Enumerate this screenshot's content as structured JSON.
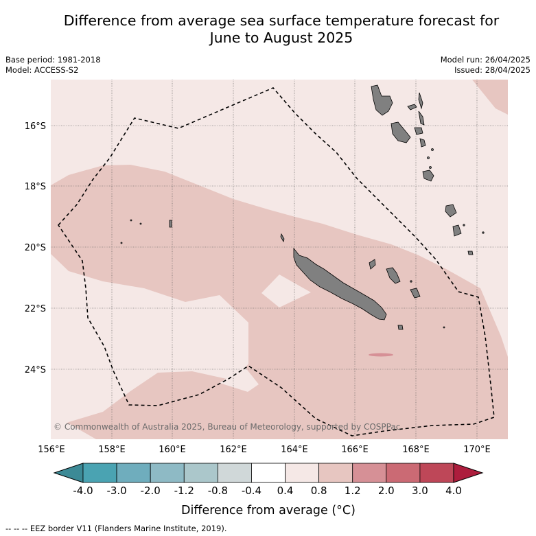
{
  "title_line1": "Difference from average sea surface temperature forecast for",
  "title_line2": "June to August 2025",
  "base_period": "Base period: 1981-2018",
  "model": "Model: ACCESS-S2",
  "model_run": "Model run: 26/04/2025",
  "issued": "Issued: 28/04/2025",
  "copyright": "© Commonwealth of Australia 2025, Bureau of Meteorology, supported by COSPPac",
  "lat_labels": [
    "16°S",
    "18°S",
    "20°S",
    "22°S",
    "24°S"
  ],
  "lon_labels": [
    "156°E",
    "158°E",
    "160°E",
    "162°E",
    "164°E",
    "166°E",
    "168°E",
    "170°E"
  ],
  "colorbar": {
    "labels": [
      "-4.0",
      "-3.0",
      "-2.0",
      "-1.2",
      "-0.8",
      "-0.4",
      "0.4",
      "0.8",
      "1.2",
      "2.0",
      "3.0",
      "4.0"
    ],
    "colors": [
      "#4aa3b2",
      "#6fadbd",
      "#8ebac5",
      "#abc7cb",
      "#d0d8d9",
      "#ffffff",
      "#f5e8e6",
      "#e7c6c1",
      "#d69096",
      "#cb6a74",
      "#be4758"
    ],
    "low_extend_color": "#3c8a96",
    "high_extend_color": "#ad1d3d",
    "label": "Difference from average (°C)"
  },
  "colors": {
    "anomaly_0_4_to_0_8": "#f5e8e6",
    "anomaly_0_8_to_1_2": "#e7c6c1",
    "anomaly_1_2_to_2_0": "#d69096",
    "land": "#808080"
  },
  "footer": "--  --  -- EEZ border V11 (Flanders Marine Institute, 2019)."
}
